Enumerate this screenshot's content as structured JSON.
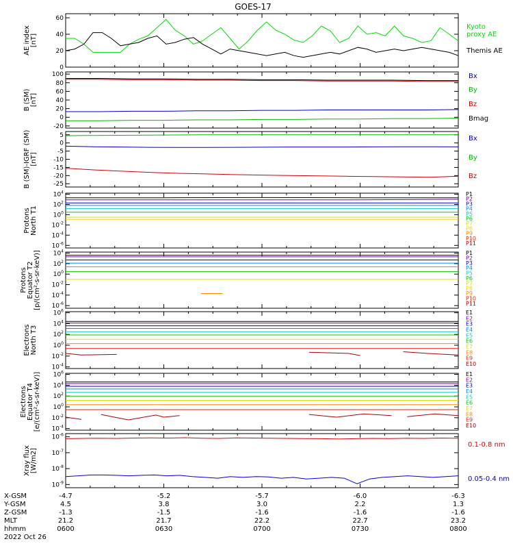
{
  "title": "GOES-17",
  "chart_data": [
    {
      "id": "ae",
      "type": "line",
      "ylabel": [
        "AE index",
        "[nT]"
      ],
      "ylim": [
        0,
        65
      ],
      "ticks": [
        0,
        20,
        40,
        60
      ],
      "tick_labels": [
        "0",
        "20",
        "40",
        "60"
      ],
      "series": [
        {
          "name": "Kyoto proxy AE",
          "color": "#00dd00",
          "label_lines": [
            "Kyoto",
            "proxy AE"
          ],
          "values": [
            35,
            35,
            28,
            18,
            18,
            18,
            18,
            28,
            34,
            38,
            48,
            58,
            45,
            38,
            28,
            32,
            40,
            48,
            35,
            22,
            32,
            45,
            55,
            45,
            40,
            33,
            30,
            38,
            50,
            44,
            30,
            35,
            50,
            40,
            42,
            38,
            50,
            38,
            35,
            30,
            32,
            48,
            40,
            32
          ]
        },
        {
          "name": "Themis AE",
          "color": "#000000",
          "label_lines": [
            "Themis AE"
          ],
          "values": [
            20,
            22,
            28,
            42,
            42,
            35,
            26,
            28,
            30,
            35,
            38,
            28,
            30,
            34,
            36,
            28,
            22,
            16,
            22,
            20,
            18,
            16,
            14,
            16,
            18,
            14,
            12,
            14,
            16,
            18,
            16,
            20,
            24,
            22,
            18,
            20,
            22,
            20,
            22,
            24,
            22,
            20,
            18,
            14
          ]
        }
      ]
    },
    {
      "id": "bsm",
      "type": "line",
      "ylabel": [
        "B (SM)",
        "[nT]"
      ],
      "ylim": [
        -25,
        105
      ],
      "ticks": [
        -20,
        0,
        20,
        40,
        60,
        80,
        100
      ],
      "tick_labels": [
        "-20",
        "0",
        "20",
        "40",
        "60",
        "80",
        "100"
      ],
      "series": [
        {
          "name": "Bx",
          "color": "#0000cc",
          "values": [
            13,
            13,
            14,
            14,
            15,
            15,
            16,
            16,
            17,
            17,
            17,
            17,
            18
          ]
        },
        {
          "name": "By",
          "color": "#00bb00",
          "values": [
            -8,
            -8,
            -7,
            -7,
            -6,
            -6,
            -5,
            -5,
            -4,
            -4,
            -3,
            -3,
            -2
          ]
        },
        {
          "name": "Bz",
          "color": "#cc0000",
          "values": [
            88,
            88,
            87,
            87,
            86,
            86,
            85,
            85,
            84,
            84,
            84,
            83,
            83
          ]
        },
        {
          "name": "Bmag",
          "color": "#000000",
          "values": [
            90,
            90,
            89,
            89,
            88,
            88,
            87,
            87,
            86,
            86,
            86,
            85,
            85
          ]
        }
      ]
    },
    {
      "id": "bigrf",
      "type": "line",
      "ylabel": [
        "B (SM)-IGRF (SM)",
        "[nT]"
      ],
      "ylim": [
        -27,
        7
      ],
      "ticks": [
        -25,
        -20,
        -15,
        -10,
        -5,
        0,
        5
      ],
      "tick_labels": [
        "-25",
        "-20",
        "-15",
        "-10",
        "-5",
        "0",
        "5"
      ],
      "series": [
        {
          "name": "Bx",
          "color": "#0000cc",
          "values": [
            -2,
            -2.3,
            -2.5,
            -2.7,
            -2.8,
            -2.8,
            -2.7,
            -2.6,
            -2.5,
            -2.5,
            -2.5,
            -2.4,
            -2.3,
            -2.3,
            -2.4
          ]
        },
        {
          "name": "By",
          "color": "#00bb00",
          "values": [
            4.5,
            4.6,
            4.7,
            4.8,
            4.9,
            5,
            5,
            5,
            5,
            5,
            5,
            5,
            5,
            5,
            5
          ]
        },
        {
          "name": "Bz",
          "color": "#cc0000",
          "values": [
            -15.5,
            -16.5,
            -17.3,
            -18,
            -18.6,
            -19,
            -19.4,
            -19.7,
            -20,
            -20.2,
            -20.4,
            -20.6,
            -20.8,
            -21,
            -20.4
          ]
        }
      ]
    },
    {
      "id": "pt1",
      "type": "line",
      "ylabel": [
        "Protons",
        "North T1"
      ],
      "log": true,
      "ylim": [
        -6.5,
        4.2
      ],
      "ticks": [
        4,
        2,
        0,
        -2,
        -4,
        -6
      ],
      "tick_labels": [
        "10^4",
        "10^2",
        "10^0",
        "10^-2",
        "10^-4",
        "10^-6"
      ],
      "series": [
        {
          "name": "P1",
          "color": "#000000",
          "values": [
            3.3,
            3.3,
            3.35,
            3.3,
            3.3
          ]
        },
        {
          "name": "P2",
          "color": "#7700aa",
          "values": [
            2.9,
            2.9,
            2.9,
            2.9,
            3.0
          ]
        },
        {
          "name": "P3",
          "color": "#0000cc",
          "values": [
            2.3,
            2.3,
            2.3,
            2.3,
            2.3
          ]
        },
        {
          "name": "P4",
          "color": "#0088ff",
          "values": [
            1.8,
            1.8,
            1.8,
            1.8,
            1.8
          ]
        },
        {
          "name": "P5",
          "color": "#00cccc",
          "values": [
            1.2,
            1.2,
            1.2,
            1.2,
            1.2
          ]
        },
        {
          "name": "P6",
          "color": "#00cc00",
          "values": [
            0.5,
            0.5,
            0.5,
            0.5,
            0.5
          ]
        },
        {
          "name": "P7",
          "color": "#dddd00",
          "values": [
            -0.5,
            -0.5,
            -0.5,
            -0.5,
            -0.5
          ]
        },
        {
          "name": "P8",
          "color": "#ffcc00",
          "values": [
            -0.9,
            -0.9,
            -0.9,
            -0.9,
            -0.9
          ]
        },
        {
          "name": "P9",
          "color": "#ff8800",
          "values": []
        },
        {
          "name": "P10",
          "color": "#ee2200",
          "values": []
        },
        {
          "name": "P11",
          "color": "#aa0000",
          "values": []
        }
      ]
    },
    {
      "id": "pt2",
      "type": "line",
      "ylabel": [
        "Protons",
        "Equator T2",
        "[p/(cm²-s-sr-keV)]"
      ],
      "log": true,
      "ylim": [
        -6.5,
        4.2
      ],
      "ticks": [
        4,
        2,
        0,
        -2,
        -4,
        -6
      ],
      "tick_labels": [
        "10^4",
        "10^2",
        "10^0",
        "10^-2",
        "10^-4",
        "10^-6"
      ],
      "series": [
        {
          "name": "P1",
          "color": "#000000",
          "values": [
            3.6,
            3.6,
            3.6,
            3.6,
            3.6
          ]
        },
        {
          "name": "P2",
          "color": "#7700aa",
          "values": [
            3.3,
            3.3,
            3.3,
            3.3,
            3.3
          ]
        },
        {
          "name": "P3",
          "color": "#0000cc",
          "values": [
            2.7,
            2.7,
            2.7,
            2.7,
            2.7
          ]
        },
        {
          "name": "P4",
          "color": "#0088ff",
          "values": [
            2.1,
            2.1,
            2.1,
            2.1,
            2.1
          ]
        },
        {
          "name": "P5",
          "color": "#00cccc",
          "values": [
            1.4,
            1.4,
            1.4,
            1.4,
            1.4
          ]
        },
        {
          "name": "P6",
          "color": "#00cc00",
          "values": [
            0.5,
            0.5,
            0.5,
            0.5,
            0.5
          ]
        },
        {
          "name": "P7",
          "color": "#dddd00",
          "values": [
            -1.0,
            -1.0,
            -1.0,
            -1.0,
            -1.0
          ]
        },
        {
          "name": "P8",
          "color": "#ffcc00",
          "values": []
        },
        {
          "name": "P9",
          "color": "#ff8800",
          "segment": [
            0.345,
            0.4
          ],
          "seg_value": -3.7
        },
        {
          "name": "P10",
          "color": "#ee2200",
          "values": []
        },
        {
          "name": "P11",
          "color": "#aa0000",
          "values": []
        }
      ]
    },
    {
      "id": "et3",
      "type": "line",
      "ylabel": [
        "Electrons",
        "North T3"
      ],
      "log": true,
      "ylim": [
        -4.3,
        6.2
      ],
      "ticks": [
        6,
        4,
        2,
        0,
        -2,
        -4
      ],
      "tick_labels": [
        "10^6",
        "10^4",
        "10^2",
        "10^0",
        "10^-2",
        "10^-4"
      ],
      "series": [
        {
          "name": "E1",
          "color": "#000000",
          "values": [
            4.4,
            4.4,
            4.4,
            4.4,
            4.4
          ]
        },
        {
          "name": "E2",
          "color": "#7700aa",
          "values": [
            4.1,
            4.1,
            4.1,
            4.1,
            4.1
          ]
        },
        {
          "name": "E3",
          "color": "#0000cc",
          "values": [
            3.6,
            3.6,
            3.6,
            3.6,
            3.6
          ]
        },
        {
          "name": "E4",
          "color": "#0088ff",
          "values": [
            3.1,
            3.1,
            3.1,
            3.1,
            3.1
          ]
        },
        {
          "name": "E5",
          "color": "#00cccc",
          "values": [
            2.5,
            2.5,
            2.5,
            2.5,
            2.5
          ]
        },
        {
          "name": "E6",
          "color": "#00cc00",
          "values": [
            1.9,
            1.9,
            1.9,
            1.9,
            1.9
          ]
        },
        {
          "name": "E7",
          "color": "#dddd00",
          "values": [
            1.1,
            1.1,
            1.1,
            1.1,
            1.1
          ]
        },
        {
          "name": "E8",
          "color": "#ff8800",
          "values": [
            0.3,
            0.3,
            0.3,
            0.3,
            0.3
          ]
        },
        {
          "name": "E9",
          "color": "#ee2200",
          "values": [
            -0.6,
            -0.6,
            -0.6,
            -0.6,
            -0.6
          ]
        },
        {
          "name": "E10",
          "color": "#aa0000",
          "pieces": [
            [
              [
                0,
                -1.5
              ],
              [
                0.04,
                -1.8
              ],
              [
                0.13,
                -1.7
              ]
            ],
            [
              [
                0.62,
                -1.3
              ],
              [
                0.72,
                -1.5
              ],
              [
                0.75,
                -1.9
              ]
            ],
            [
              [
                0.86,
                -1.2
              ],
              [
                0.92,
                -1.5
              ],
              [
                1,
                -1.8
              ]
            ]
          ]
        }
      ]
    },
    {
      "id": "et4",
      "type": "line",
      "ylabel": [
        "Electrons",
        "Equator T4",
        "[e/(cm²-s-sr-keV)]"
      ],
      "log": true,
      "ylim": [
        -4.3,
        6.2
      ],
      "ticks": [
        6,
        4,
        2,
        0,
        -2,
        -4
      ],
      "tick_labels": [
        "10^6",
        "10^4",
        "10^2",
        "10^0",
        "10^-2",
        "10^-4"
      ],
      "series": [
        {
          "name": "E1",
          "color": "#000000",
          "values": [
            4.6,
            4.6,
            4.6,
            4.6,
            4.6
          ]
        },
        {
          "name": "E2",
          "color": "#7700aa",
          "values": [
            4.3,
            4.3,
            4.3,
            4.3,
            4.3
          ]
        },
        {
          "name": "E3",
          "color": "#0000cc",
          "values": [
            3.8,
            3.8,
            3.8,
            3.8,
            3.8
          ]
        },
        {
          "name": "E4",
          "color": "#0088ff",
          "values": [
            3.3,
            3.3,
            3.3,
            3.3,
            3.3
          ]
        },
        {
          "name": "E5",
          "color": "#00cccc",
          "values": [
            2.7,
            2.7,
            2.7,
            2.7,
            2.7
          ]
        },
        {
          "name": "E6",
          "color": "#00cc00",
          "values": [
            2.0,
            2.0,
            2.0,
            2.0,
            2.0
          ]
        },
        {
          "name": "E7",
          "color": "#dddd00",
          "values": [
            1.2,
            1.2,
            1.2,
            1.2,
            1.2
          ]
        },
        {
          "name": "E8",
          "color": "#ff8800",
          "values": [
            0.4,
            0.4,
            0.4,
            0.4,
            0.4
          ]
        },
        {
          "name": "E9",
          "color": "#ee2200",
          "values": [
            -0.5,
            -0.5,
            -0.5,
            -0.5,
            -0.5
          ]
        },
        {
          "name": "E10",
          "color": "#aa0000",
          "pieces": [
            [
              [
                0,
                -1.9
              ],
              [
                0.04,
                -2.3
              ]
            ],
            [
              [
                0.09,
                -1.4
              ],
              [
                0.16,
                -2.4
              ],
              [
                0.23,
                -1.5
              ],
              [
                0.25,
                -1.9
              ],
              [
                0.29,
                -1.6
              ]
            ],
            [
              [
                0.62,
                -1.4
              ],
              [
                0.69,
                -1.9
              ],
              [
                0.76,
                -1.3
              ],
              [
                0.83,
                -1.6
              ]
            ],
            [
              [
                0.87,
                -1.8
              ],
              [
                0.94,
                -1.3
              ],
              [
                1,
                -1.6
              ]
            ]
          ]
        }
      ]
    },
    {
      "id": "xray",
      "type": "line",
      "ylabel": [
        "Xray flux",
        "[W/m2]"
      ],
      "log": true,
      "ylim": [
        -9.2,
        -5.8
      ],
      "ticks": [
        -6,
        -7,
        -8,
        -9
      ],
      "tick_labels": [
        "10^-6",
        "10^-7",
        "10^-8",
        "10^-9"
      ],
      "series": [
        {
          "name": "0.1-0.8 nm",
          "color": "#dd0000",
          "label_lines": [
            "0.1-0.8 nm"
          ],
          "values": [
            -6.12,
            -6.1,
            -6.09,
            -6.1,
            -6.08,
            -6.07,
            -6.08,
            -6.06,
            -6.09,
            -6.1,
            -6.07,
            -6.08,
            -6.09,
            -6.1,
            -6.11,
            -6.12,
            -6.14,
            -6.12,
            -6.1,
            -6.11,
            -6.09,
            -6.1,
            -6.08,
            -6.09
          ]
        },
        {
          "name": "0.05-0.4 nm",
          "color": "#0000dd",
          "label_lines": [
            "0.05-0.4 nm"
          ],
          "values": [
            -8.5,
            -8.45,
            -8.4,
            -8.4,
            -8.42,
            -8.45,
            -8.42,
            -8.4,
            -8.45,
            -8.42,
            -8.5,
            -8.55,
            -8.6,
            -8.5,
            -8.55,
            -8.5,
            -8.52,
            -8.6,
            -8.55,
            -8.65,
            -8.6,
            -8.55,
            -8.6,
            -8.95,
            -8.65,
            -8.55,
            -8.5,
            -8.45,
            -8.5,
            -8.55,
            -8.5,
            -8.45
          ]
        }
      ]
    }
  ],
  "x_axis": {
    "row_labels": [
      "X-GSM",
      "Y-GSM",
      "Z-GSM",
      "MLT",
      "hhmm",
      "2022 Oct 26"
    ],
    "columns": [
      {
        "pos": 0.0,
        "values": [
          "-4.7",
          "4.5",
          "-1.3",
          "21.2",
          "0600"
        ]
      },
      {
        "pos": 0.25,
        "values": [
          "-5.2",
          "3.8",
          "-1.5",
          "21.7",
          "0630"
        ]
      },
      {
        "pos": 0.5,
        "values": [
          "-5.7",
          "3.0",
          "-1.6",
          "22.2",
          "0700"
        ]
      },
      {
        "pos": 0.75,
        "values": [
          "-6.0",
          "2.2",
          "-1.6",
          "22.7",
          "0730"
        ]
      },
      {
        "pos": 1.0,
        "values": [
          "-6.3",
          "1.3",
          "-1.6",
          "23.2",
          "0800"
        ]
      }
    ]
  }
}
